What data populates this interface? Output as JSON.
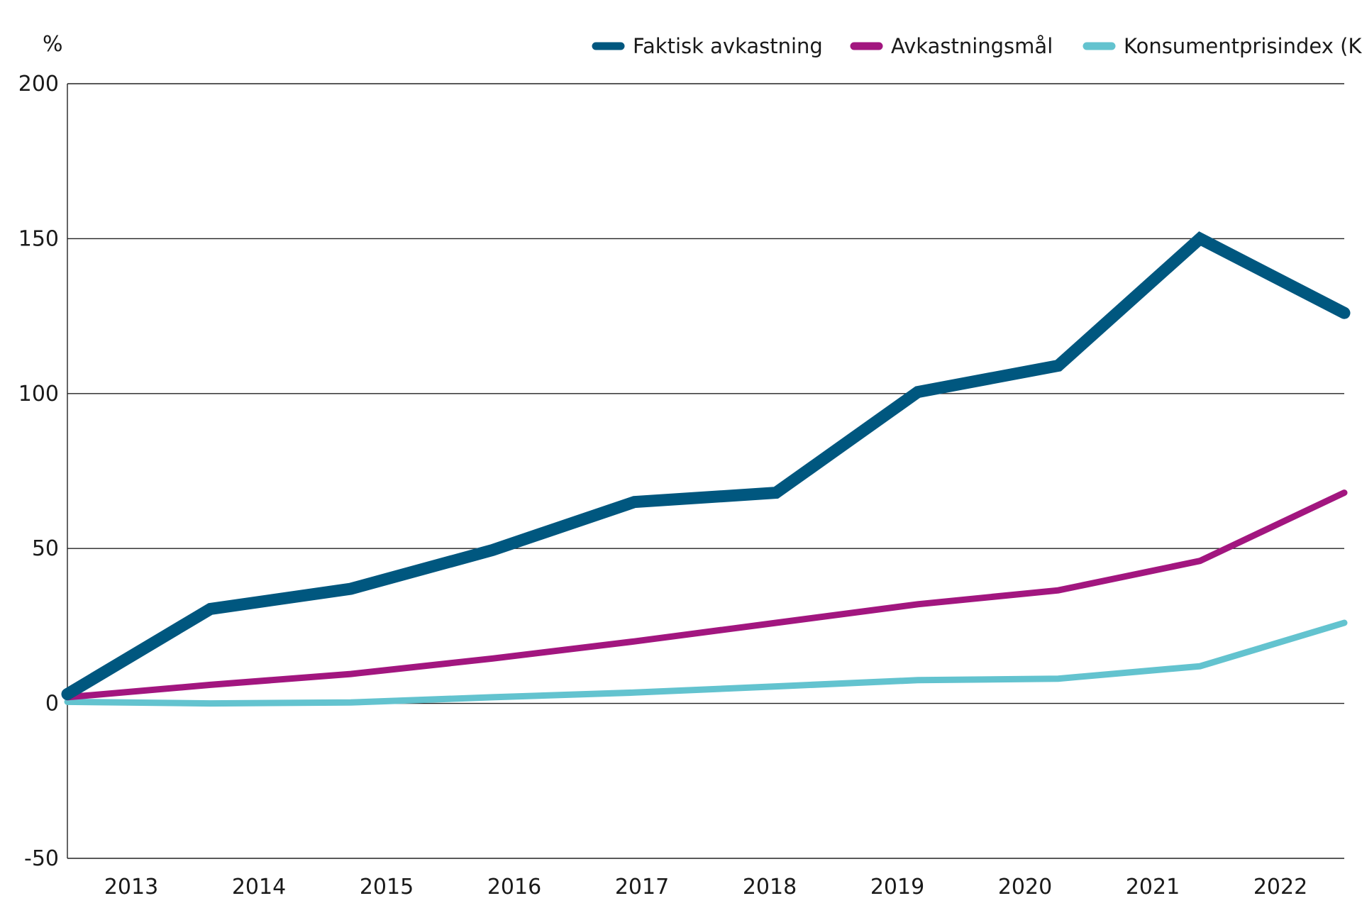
{
  "chart_data": {
    "type": "line",
    "title": "",
    "xlabel": "",
    "ylabel": "%",
    "ylim": [
      -50,
      200
    ],
    "yticks": [
      200,
      150,
      100,
      50,
      0,
      -50
    ],
    "yticks_labels": [
      "200",
      "150",
      "100",
      "50",
      "0",
      "-50"
    ],
    "categories": [
      "2013",
      "2014",
      "2015",
      "2016",
      "2017",
      "2018",
      "2019",
      "2020",
      "2021",
      "2022"
    ],
    "grid": "horizontal",
    "legend_position": "top-right",
    "series": [
      {
        "name": "Faktisk avkastning",
        "color": "#00577f",
        "x": [
          2012.5,
          2013.62,
          2014.72,
          2015.83,
          2016.94,
          2018.05,
          2019.16,
          2020.26,
          2021.37,
          2022.5
        ],
        "values": [
          3,
          30.5,
          37,
          49.5,
          65,
          68,
          100.5,
          109,
          150,
          126
        ]
      },
      {
        "name": "Avkastningsmål",
        "color": "#a2167f",
        "x": [
          2012.5,
          2013.62,
          2014.72,
          2015.83,
          2016.94,
          2018.05,
          2019.16,
          2020.26,
          2021.37,
          2022.5
        ],
        "values": [
          2,
          6,
          9.5,
          14.5,
          20,
          26,
          32,
          36.5,
          46,
          68
        ]
      },
      {
        "name": "Konsumentprisindex (KPI)",
        "color": "#63c3cf",
        "x": [
          2012.5,
          2013.62,
          2014.72,
          2015.83,
          2016.94,
          2018.05,
          2019.16,
          2020.26,
          2021.37,
          2022.5
        ],
        "values": [
          0.5,
          0,
          0.3,
          2,
          3.5,
          5.5,
          7.5,
          8,
          12,
          26
        ]
      }
    ]
  }
}
